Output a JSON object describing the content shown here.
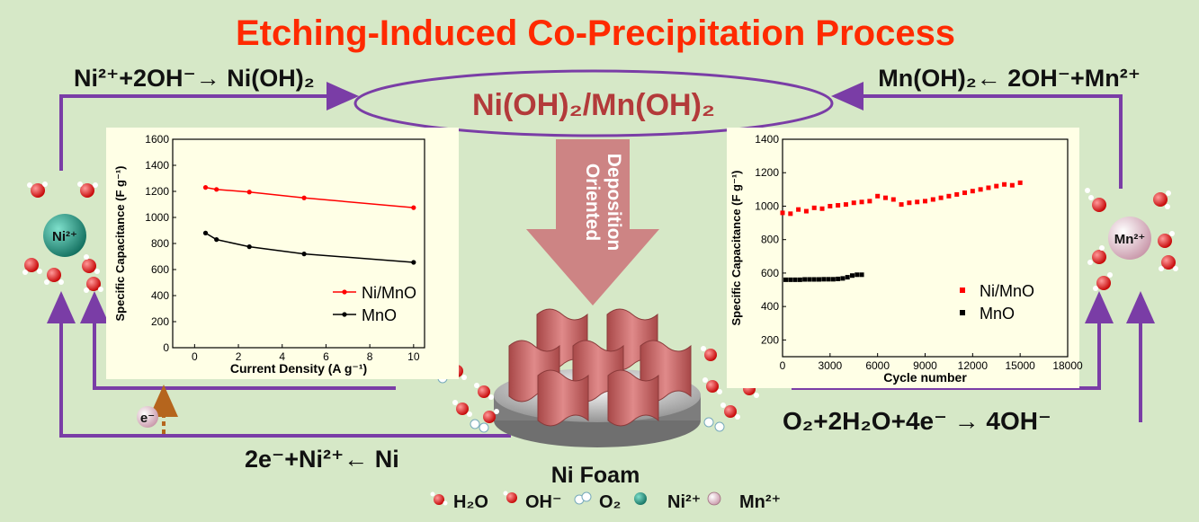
{
  "title": "Etching-Induced Co-Precipitation Process",
  "center_product": "Ni(OH)₂/Mn(OH)₂",
  "deposition_label": [
    "Oriented",
    "Deposition"
  ],
  "substrate_label": "Ni Foam",
  "reactions": {
    "ni_top": "Ni²⁺+2OH⁻→ Ni(OH)₂",
    "mn_top": "Mn(OH)₂← 2OH⁻+Mn²⁺",
    "oxygen": "O₂+2H₂O+4e⁻ → 4OH⁻",
    "ni_oxidation": "2e⁻+Ni²⁺← Ni"
  },
  "ions": {
    "ni": "Ni²⁺",
    "mn": "Mn²⁺",
    "electron": "e⁻"
  },
  "legend": [
    {
      "label": "H₂O",
      "icon": "water-molecule-icon"
    },
    {
      "label": "OH⁻",
      "icon": "hydroxide-icon"
    },
    {
      "label": "O₂",
      "icon": "oxygen-icon"
    },
    {
      "label": "Ni²⁺",
      "icon": "nickel-ion-icon"
    },
    {
      "label": "Mn²⁺",
      "icon": "manganese-ion-icon"
    }
  ],
  "colors": {
    "background": "#d6e8c7",
    "title": "#ff2a00",
    "product": "#b33a3a",
    "ellipse": "#7a3da6",
    "arrow": "#7a3da6",
    "panel": "#ffffe6",
    "ni_ion": "#1f8f7a",
    "mn_ion": "#e6c3cf",
    "nimno": "#ff0000",
    "mno": "#000000",
    "deposition_arrow": "#cd8484"
  },
  "chart_data": [
    {
      "type": "line",
      "xlabel": "Current Density (A g⁻¹)",
      "ylabel": "Specific Capacitance (F g⁻¹)",
      "xlim": [
        -1,
        10.5
      ],
      "ylim": [
        0,
        1600
      ],
      "xticks": [
        "0",
        "2",
        "4",
        "6",
        "8",
        "10"
      ],
      "yticks": [
        "0",
        "200",
        "400",
        "600",
        "800",
        "1000",
        "1200",
        "1400",
        "1600"
      ],
      "legend_position": "bottom-right",
      "series": [
        {
          "name": "Ni/MnO",
          "x": [
            0.5,
            1,
            2.5,
            5,
            10
          ],
          "values": [
            1230,
            1215,
            1195,
            1150,
            1075
          ],
          "color": "#ff0000"
        },
        {
          "name": "MnO",
          "x": [
            0.5,
            1,
            2.5,
            5,
            10
          ],
          "values": [
            880,
            830,
            775,
            720,
            655
          ],
          "color": "#000000"
        }
      ]
    },
    {
      "type": "scatter",
      "xlabel": "Cycle number",
      "ylabel": "Specific Capacitance (F g⁻¹)",
      "xlim": [
        0,
        18000
      ],
      "ylim": [
        100,
        1400
      ],
      "xticks": [
        "0",
        "3000",
        "6000",
        "9000",
        "12000",
        "15000",
        "18000"
      ],
      "yticks": [
        "200",
        "400",
        "600",
        "800",
        "1000",
        "1200",
        "1400"
      ],
      "legend_position": "bottom-right",
      "series": [
        {
          "name": "Ni/MnO",
          "color": "#ff0000",
          "x": [
            0,
            500,
            1000,
            1500,
            2000,
            2500,
            3000,
            3500,
            4000,
            4500,
            5000,
            5500,
            6000,
            6500,
            7000,
            7500,
            8000,
            8500,
            9000,
            9500,
            10000,
            10500,
            11000,
            11500,
            12000,
            12500,
            13000,
            13500,
            14000,
            14500,
            15000
          ],
          "values": [
            960,
            955,
            980,
            970,
            990,
            985,
            1000,
            1005,
            1010,
            1020,
            1025,
            1030,
            1060,
            1050,
            1040,
            1010,
            1020,
            1025,
            1030,
            1040,
            1050,
            1060,
            1070,
            1080,
            1090,
            1100,
            1110,
            1120,
            1130,
            1125,
            1140
          ]
        },
        {
          "name": "MnO",
          "color": "#000000",
          "x": [
            200,
            500,
            800,
            1100,
            1400,
            1700,
            2000,
            2300,
            2600,
            2900,
            3200,
            3500,
            3800,
            4100,
            4400,
            4700,
            5000
          ],
          "values": [
            560,
            560,
            560,
            560,
            562,
            562,
            562,
            562,
            563,
            563,
            563,
            565,
            568,
            575,
            585,
            590,
            590
          ]
        }
      ]
    }
  ]
}
